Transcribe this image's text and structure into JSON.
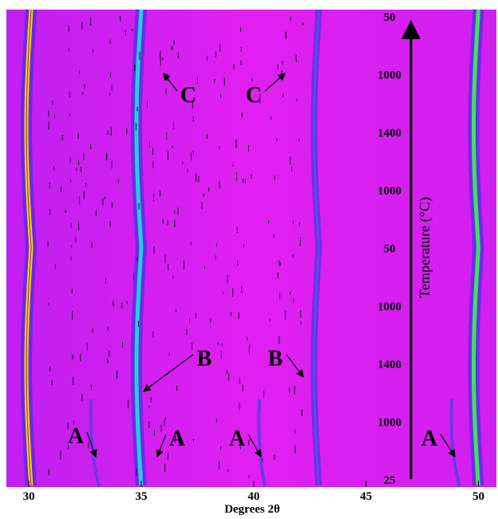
{
  "chart_data": {
    "type": "xrd-map",
    "x_label": "Degrees 2θ",
    "y_label": "Temperature (°C)",
    "xlim": [
      29,
      50.8
    ],
    "xticks": [
      30,
      35,
      40,
      45,
      50
    ],
    "temperature_labels": [
      50,
      1000,
      1400,
      1000,
      50,
      1000,
      1400,
      1000,
      25
    ],
    "peaks": [
      {
        "position": 30.1,
        "color": "#e8e020"
      },
      {
        "position": 35.0,
        "color": "#20d0e0"
      },
      {
        "position": 42.9,
        "color": "#5050e8"
      },
      {
        "position": 50.0,
        "color": "#40e060"
      }
    ],
    "annotations": [
      "C",
      "C",
      "B",
      "B",
      "A",
      "A",
      "A",
      "A"
    ]
  }
}
